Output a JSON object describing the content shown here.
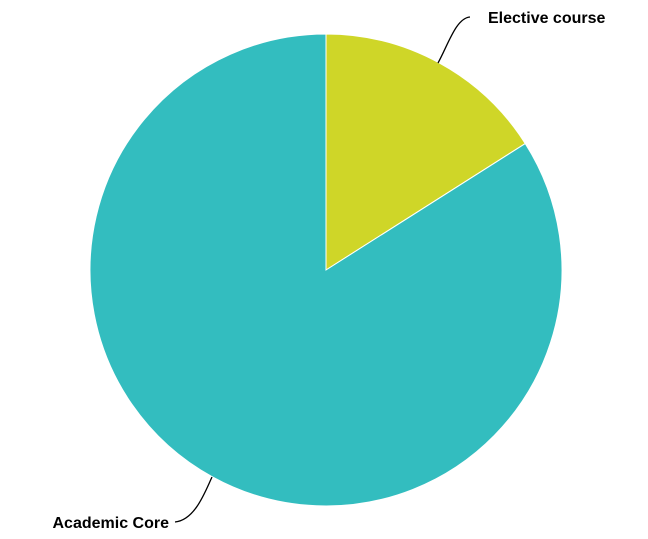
{
  "chart_data": {
    "type": "pie",
    "title": "",
    "start": "12 o'clock",
    "direction": "clockwise",
    "slices": [
      {
        "label": "Elective course",
        "value": 16,
        "color": "#cfd628"
      },
      {
        "label": "Academic Core",
        "value": 84,
        "color": "#33bdbf"
      }
    ]
  }
}
